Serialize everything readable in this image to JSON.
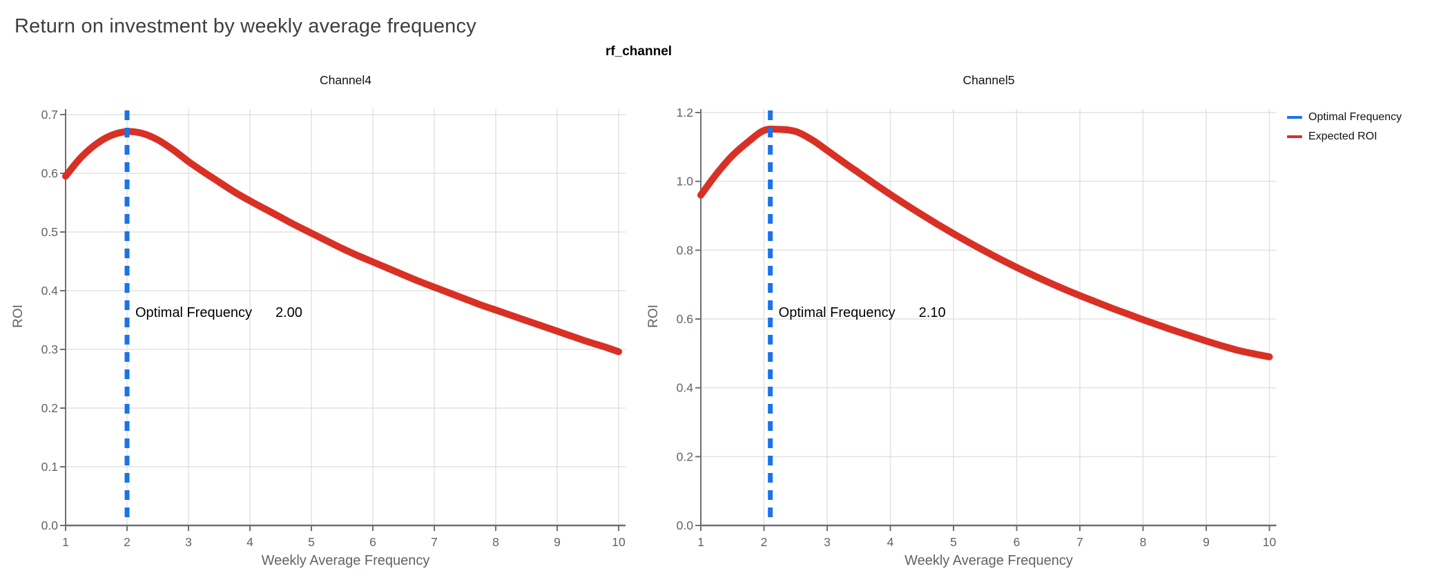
{
  "page": {
    "title": "Return on investment by weekly average frequency"
  },
  "figure": {
    "group_title": "rf_channel",
    "colors": {
      "roi_curve": "#d93025",
      "optimal_line": "#1a73e8",
      "grid": "#e2e2e2",
      "axis": "#6b7075",
      "tick_label": "#5f6368",
      "title_text": "#3c4043"
    },
    "legend": {
      "position": "right-top",
      "items": [
        {
          "label": "Optimal Frequency",
          "color": "#1a73e8"
        },
        {
          "label": "Expected ROI",
          "color": "#d93025"
        }
      ]
    }
  },
  "chart_data": [
    {
      "type": "line",
      "title": "Channel4",
      "xlabel": "Weekly Average Frequency",
      "ylabel": "ROI",
      "xlim": [
        1,
        10
      ],
      "ylim": [
        0,
        0.7
      ],
      "xticks": [
        1,
        2,
        3,
        4,
        5,
        6,
        7,
        8,
        9,
        10
      ],
      "yticks": [
        0,
        0.1,
        0.2,
        0.3,
        0.4,
        0.5,
        0.6,
        0.7
      ],
      "ytick_labels": [
        "0.0",
        "0.1",
        "0.2",
        "0.3",
        "0.4",
        "0.5",
        "0.6",
        "0.7"
      ],
      "grid": true,
      "optimal_frequency": 2.0,
      "annotation": {
        "label": "Optimal Frequency",
        "value": "2.00"
      },
      "series": [
        {
          "name": "Expected ROI",
          "x": [
            1,
            1.25,
            1.5,
            1.75,
            2,
            2.25,
            2.5,
            2.75,
            3,
            3.25,
            3.5,
            3.75,
            4,
            4.25,
            4.5,
            4.75,
            5,
            5.25,
            5.5,
            5.75,
            6,
            6.25,
            6.5,
            6.75,
            7,
            7.25,
            7.5,
            7.75,
            8,
            8.25,
            8.5,
            8.75,
            9,
            9.25,
            9.5,
            9.75,
            10
          ],
          "y": [
            0.595,
            0.627,
            0.65,
            0.665,
            0.671,
            0.668,
            0.657,
            0.64,
            0.62,
            0.602,
            0.585,
            0.568,
            0.553,
            0.539,
            0.525,
            0.511,
            0.498,
            0.485,
            0.472,
            0.46,
            0.449,
            0.438,
            0.427,
            0.416,
            0.406,
            0.396,
            0.386,
            0.376,
            0.367,
            0.358,
            0.349,
            0.34,
            0.331,
            0.322,
            0.313,
            0.305,
            0.296
          ]
        }
      ]
    },
    {
      "type": "line",
      "title": "Channel5",
      "xlabel": "Weekly Average Frequency",
      "ylabel": "ROI",
      "xlim": [
        1,
        10
      ],
      "ylim": [
        0,
        1.2
      ],
      "xticks": [
        1,
        2,
        3,
        4,
        5,
        6,
        7,
        8,
        9,
        10
      ],
      "yticks": [
        0,
        0.2,
        0.4,
        0.6,
        0.8,
        1.0,
        1.2
      ],
      "ytick_labels": [
        "0.0",
        "0.2",
        "0.4",
        "0.6",
        "0.8",
        "1.0",
        "1.2"
      ],
      "grid": true,
      "optimal_frequency": 2.1,
      "annotation": {
        "label": "Optimal Frequency",
        "value": "2.10"
      },
      "series": [
        {
          "name": "Expected ROI",
          "x": [
            1,
            1.25,
            1.5,
            1.75,
            2,
            2.25,
            2.5,
            2.75,
            3,
            3.25,
            3.5,
            3.75,
            4,
            4.25,
            4.5,
            4.75,
            5,
            5.25,
            5.5,
            5.75,
            6,
            6.25,
            6.5,
            6.75,
            7,
            7.25,
            7.5,
            7.75,
            8,
            8.25,
            8.5,
            8.75,
            9,
            9.25,
            9.5,
            9.75,
            10
          ],
          "y": [
            0.96,
            1.022,
            1.075,
            1.115,
            1.148,
            1.151,
            1.145,
            1.122,
            1.09,
            1.057,
            1.025,
            0.993,
            0.962,
            0.932,
            0.903,
            0.875,
            0.848,
            0.822,
            0.797,
            0.773,
            0.75,
            0.728,
            0.707,
            0.687,
            0.668,
            0.65,
            0.632,
            0.615,
            0.598,
            0.582,
            0.566,
            0.551,
            0.536,
            0.522,
            0.509,
            0.499,
            0.49
          ]
        }
      ]
    }
  ]
}
